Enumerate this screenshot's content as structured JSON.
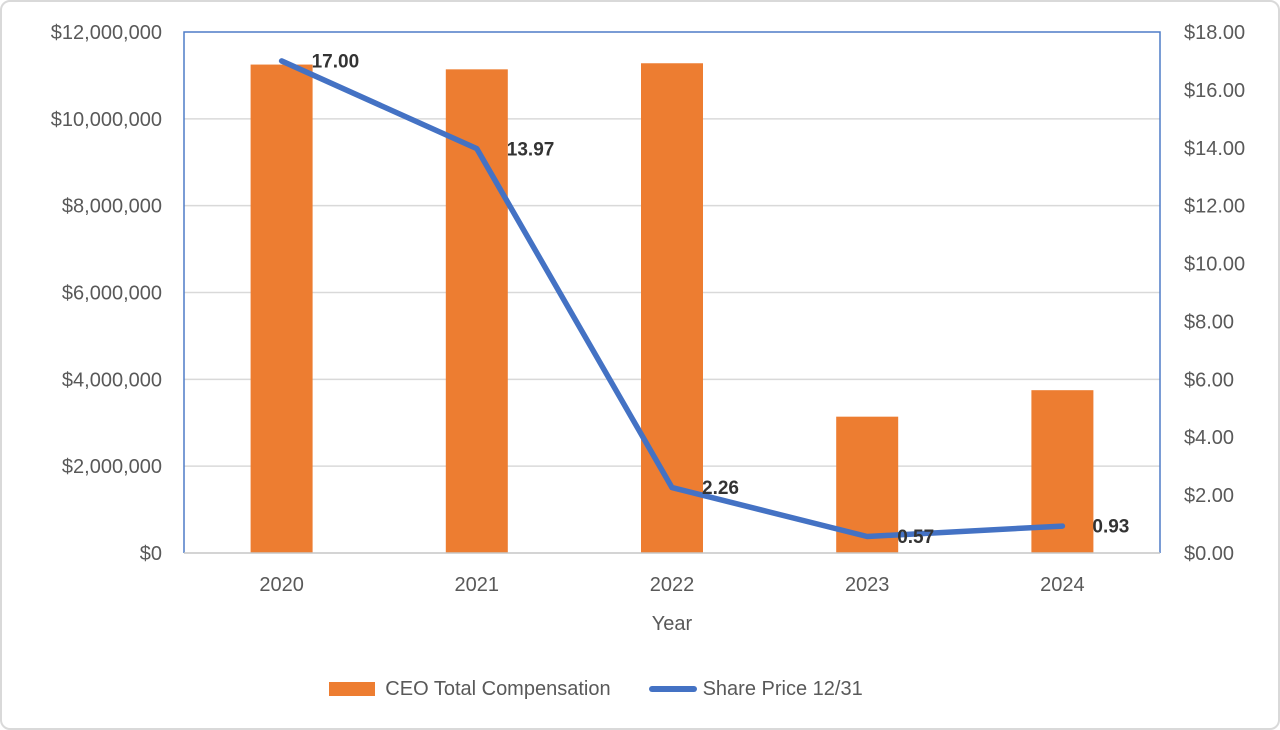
{
  "chart_data": {
    "type": "combo",
    "title": "",
    "categories": [
      "2020",
      "2021",
      "2022",
      "2023",
      "2024"
    ],
    "xlabel": "Year",
    "series": [
      {
        "name": "CEO Total Compensation",
        "type": "bar",
        "axis": "left",
        "color": "#ED7D31",
        "values": [
          11250000,
          11140000,
          11280000,
          3140000,
          3750000
        ]
      },
      {
        "name": "Share Price 12/31",
        "type": "line",
        "axis": "right",
        "color": "#4472C4",
        "values": [
          17.0,
          13.97,
          2.26,
          0.57,
          0.93
        ],
        "data_labels": [
          "17.00",
          "13.97",
          "2.26",
          "0.57",
          "0.93"
        ]
      }
    ],
    "left_axis": {
      "min": 0,
      "max": 12000000,
      "step": 2000000,
      "tick_labels": [
        "$12,000,000",
        "$10,000,000",
        "$8,000,000",
        "$6,000,000",
        "$4,000,000",
        "$2,000,000",
        "$0"
      ]
    },
    "right_axis": {
      "min": 0,
      "max": 18,
      "step": 2,
      "tick_labels": [
        "$18.00",
        "$16.00",
        "$14.00",
        "$12.00",
        "$10.00",
        "$8.00",
        "$6.00",
        "$4.00",
        "$2.00",
        "$0.00"
      ]
    },
    "grid": true,
    "legend_position": "bottom",
    "colors": {
      "gridline": "#D9D9D9",
      "plot_border": "#4E7CC7",
      "axis_line": "#C6C6C6",
      "axis_text": "#595959",
      "data_label_text": "#333333",
      "frame_border": "#D9D9D9"
    }
  }
}
